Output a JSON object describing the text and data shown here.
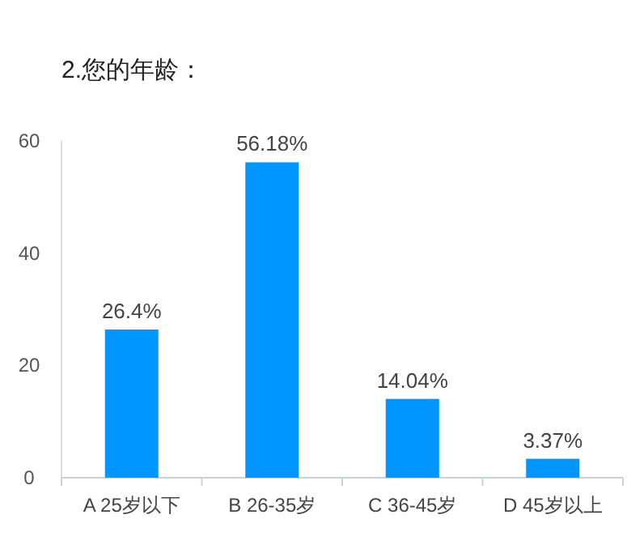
{
  "chart_data": {
    "type": "bar",
    "title": "2.您的年龄：",
    "categories": [
      "A 25岁以下",
      "B 26-35岁",
      "C 36-45岁",
      "D 45岁以上"
    ],
    "values": [
      26.4,
      56.18,
      14.04,
      3.37
    ],
    "value_labels": [
      "26.4%",
      "56.18%",
      "14.04%",
      "3.37%"
    ],
    "color": "#0095ff",
    "ylim": [
      0,
      60
    ],
    "yticks": [
      0,
      20,
      40,
      60
    ]
  }
}
